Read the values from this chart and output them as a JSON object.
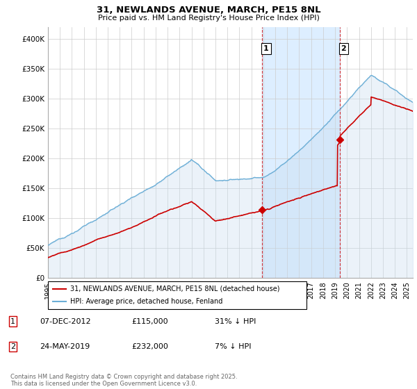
{
  "title1": "31, NEWLANDS AVENUE, MARCH, PE15 8NL",
  "title2": "Price paid vs. HM Land Registry's House Price Index (HPI)",
  "ylabel_ticks": [
    "£0",
    "£50K",
    "£100K",
    "£150K",
    "£200K",
    "£250K",
    "£300K",
    "£350K",
    "£400K"
  ],
  "ytick_values": [
    0,
    50000,
    100000,
    150000,
    200000,
    250000,
    300000,
    350000,
    400000
  ],
  "ylim": [
    0,
    420000
  ],
  "xlim_start": 1995.0,
  "xlim_end": 2025.5,
  "hpi_color": "#6baed6",
  "hpi_fill_color": "#c6dbef",
  "price_color": "#cc0000",
  "marker1_year": 2012.92,
  "marker1_price": 115000,
  "marker2_year": 2019.39,
  "marker2_price": 232000,
  "vline_color": "#cc0000",
  "span_color": "#ddeeff",
  "legend_label1": "31, NEWLANDS AVENUE, MARCH, PE15 8NL (detached house)",
  "legend_label2": "HPI: Average price, detached house, Fenland",
  "table_row1_num": "1",
  "table_row1_date": "07-DEC-2012",
  "table_row1_price": "£115,000",
  "table_row1_hpi": "31% ↓ HPI",
  "table_row2_num": "2",
  "table_row2_date": "24-MAY-2019",
  "table_row2_price": "£232,000",
  "table_row2_hpi": "7% ↓ HPI",
  "footnote": "Contains HM Land Registry data © Crown copyright and database right 2025.\nThis data is licensed under the Open Government Licence v3.0.",
  "background_color": "#ffffff",
  "plot_bg_color": "#ffffff",
  "grid_color": "#cccccc"
}
